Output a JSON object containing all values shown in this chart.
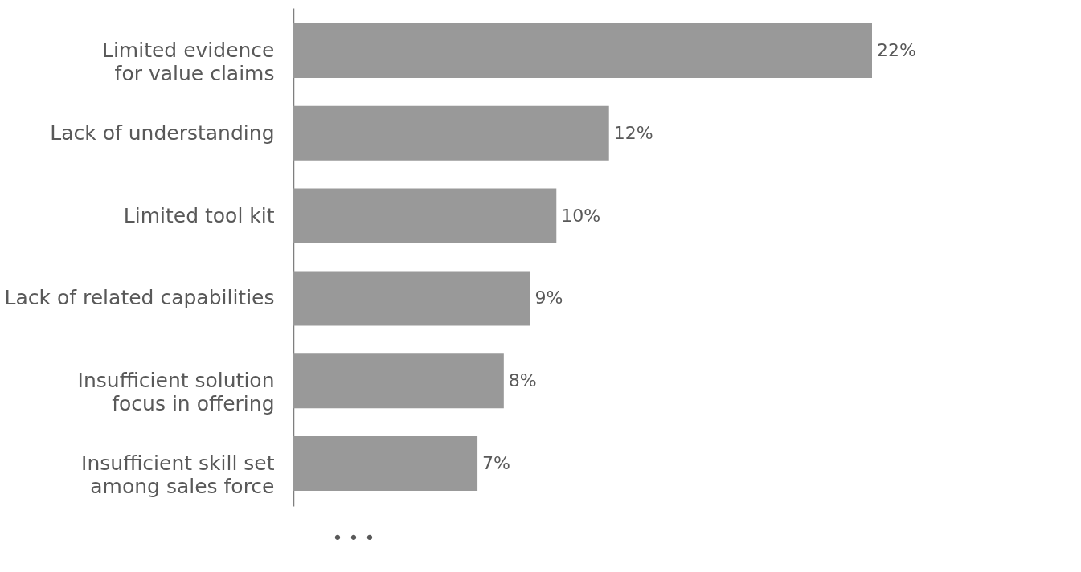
{
  "chart_data": {
    "type": "bar",
    "orientation": "horizontal",
    "categories": [
      "Limited evidence for value claims",
      "Lack of understanding",
      "Limited tool kit",
      "Lack of related capabilities",
      "Insufficient solution focus in offering",
      "Insufficient skill set among sales force"
    ],
    "values": [
      22,
      12,
      10,
      9,
      8,
      7
    ],
    "value_labels": [
      "22%",
      "12%",
      "10%",
      "9%",
      "8%",
      "7%"
    ],
    "color": "#999999",
    "annotations": [
      "• • •"
    ]
  }
}
